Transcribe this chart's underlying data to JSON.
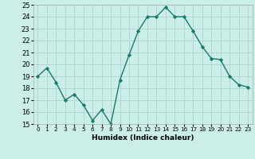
{
  "x": [
    0,
    1,
    2,
    3,
    4,
    5,
    6,
    7,
    8,
    9,
    10,
    11,
    12,
    13,
    14,
    15,
    16,
    17,
    18,
    19,
    20,
    21,
    22,
    23
  ],
  "y": [
    19.0,
    19.7,
    18.5,
    17.0,
    17.5,
    16.6,
    15.3,
    16.2,
    15.0,
    18.7,
    20.8,
    22.8,
    24.0,
    24.0,
    24.8,
    24.0,
    24.0,
    22.8,
    21.5,
    20.5,
    20.4,
    19.0,
    18.3,
    18.1
  ],
  "xlabel": "Humidex (Indice chaleur)",
  "ylim": [
    15,
    25
  ],
  "xlim": [
    -0.5,
    23.5
  ],
  "yticks": [
    15,
    16,
    17,
    18,
    19,
    20,
    21,
    22,
    23,
    24,
    25
  ],
  "xtick_labels": [
    "0",
    "1",
    "2",
    "3",
    "4",
    "5",
    "6",
    "7",
    "8",
    "9",
    "10",
    "11",
    "12",
    "13",
    "14",
    "15",
    "16",
    "17",
    "18",
    "19",
    "20",
    "21",
    "22",
    "23"
  ],
  "line_color": "#1a7a6e",
  "marker_color": "#1a7a6e",
  "bg_color": "#cceee8",
  "grid_color": "#b0d8d0",
  "font_color": "#000000",
  "spine_color": "#aaaaaa"
}
